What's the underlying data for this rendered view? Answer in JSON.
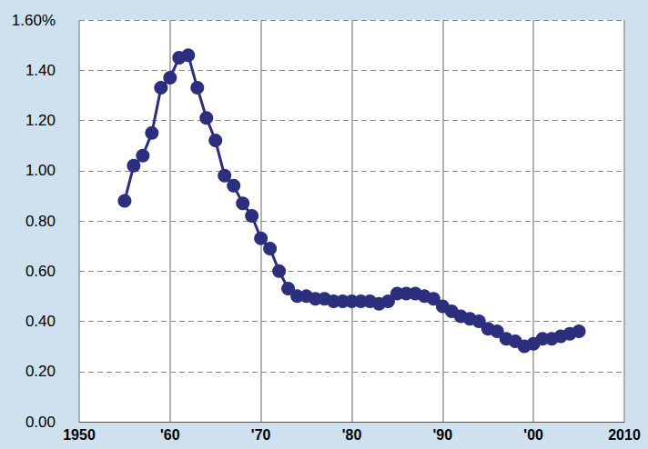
{
  "chart_data": {
    "type": "line",
    "x": [
      1955,
      1956,
      1957,
      1958,
      1959,
      1960,
      1961,
      1962,
      1963,
      1964,
      1965,
      1966,
      1967,
      1968,
      1969,
      1970,
      1971,
      1972,
      1973,
      1974,
      1975,
      1976,
      1977,
      1978,
      1979,
      1980,
      1981,
      1982,
      1983,
      1984,
      1985,
      1986,
      1987,
      1988,
      1989,
      1990,
      1991,
      1992,
      1993,
      1994,
      1995,
      1996,
      1997,
      1998,
      1999,
      2000,
      2001,
      2002,
      2003,
      2004,
      2005
    ],
    "values": [
      0.88,
      1.02,
      1.06,
      1.15,
      1.33,
      1.37,
      1.45,
      1.46,
      1.33,
      1.21,
      1.12,
      0.98,
      0.94,
      0.87,
      0.82,
      0.73,
      0.69,
      0.6,
      0.53,
      0.5,
      0.5,
      0.49,
      0.49,
      0.48,
      0.48,
      0.48,
      0.48,
      0.48,
      0.47,
      0.48,
      0.51,
      0.51,
      0.51,
      0.5,
      0.49,
      0.46,
      0.44,
      0.42,
      0.41,
      0.4,
      0.37,
      0.36,
      0.33,
      0.32,
      0.3,
      0.31,
      0.33,
      0.33,
      0.34,
      0.35,
      0.36
    ],
    "color": "#2b2f7e",
    "marker": "circle",
    "line_style": "solid",
    "xlim": [
      1950,
      2010
    ],
    "xticks": [
      1950,
      {
        "value": 1960,
        "label": "'60"
      },
      {
        "value": 1970,
        "label": "'70"
      },
      {
        "value": 1980,
        "label": "'80"
      },
      {
        "value": 1990,
        "label": "'90"
      },
      {
        "value": 2000,
        "label": "'00"
      },
      2010
    ],
    "ylim": [
      0,
      1.6
    ],
    "yticks": [
      {
        "value": 0,
        "label": "0.00"
      },
      {
        "value": 0.2,
        "label": "0.20"
      },
      {
        "value": 0.4,
        "label": "0.40"
      },
      {
        "value": 0.6,
        "label": "0.60"
      },
      {
        "value": 0.8,
        "label": "0.80"
      },
      {
        "value": 1.0,
        "label": "1.00"
      },
      {
        "value": 1.2,
        "label": "1.20"
      },
      {
        "value": 1.4,
        "label": "1.40"
      },
      {
        "value": 1.6,
        "label": "1.60%"
      }
    ],
    "grid": true
  }
}
